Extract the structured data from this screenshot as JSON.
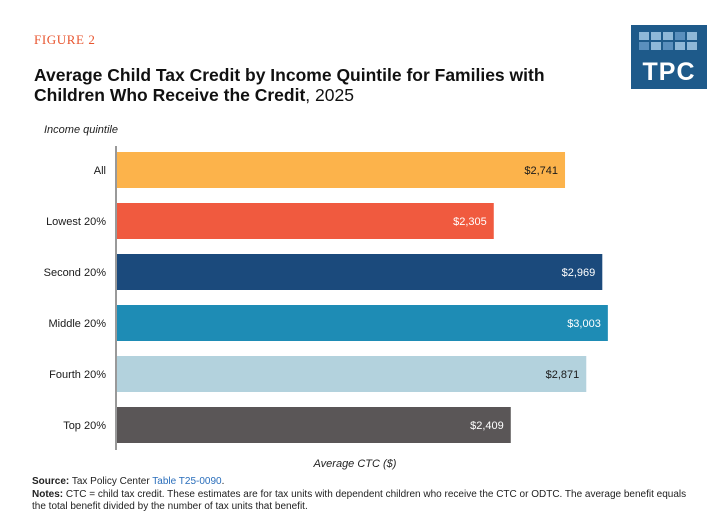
{
  "header": {
    "figure_label": "FIGURE 2",
    "title_bold": "Average Child Tax Credit by Income Quintile for Families with Children Who Receive the Credit",
    "title_suffix": ", 2025"
  },
  "logo": {
    "text": "TPC",
    "color": "#1e5a8a"
  },
  "chart_data": {
    "type": "bar",
    "orientation": "horizontal",
    "title": "Average Child Tax Credit by Income Quintile for Families with Children Who Receive the Credit, 2025",
    "ylabel": "Income quintile",
    "xlabel": "Average CTC ($)",
    "categories": [
      "All",
      "Lowest 20%",
      "Second 20%",
      "Middle 20%",
      "Fourth 20%",
      "Top 20%"
    ],
    "values": [
      2741,
      2305,
      2969,
      3003,
      2871,
      2409
    ],
    "value_labels": [
      "$2,741",
      "$2,305",
      "$2,969",
      "$3,003",
      "$2,871",
      "$2,409"
    ],
    "colors": [
      "#fcb34b",
      "#f05a3f",
      "#1b4a7c",
      "#1e8cb5",
      "#b3d2dd",
      "#5a5657"
    ],
    "label_colors": [
      "#1a1a1a",
      "#ffffff",
      "#ffffff",
      "#ffffff",
      "#1a1a1a",
      "#ffffff"
    ],
    "xlim": [
      0,
      3010
    ],
    "grid": false
  },
  "footer": {
    "source_label": "Source:",
    "source_text": "Tax Policy Center",
    "source_link": "Table T25-0090",
    "source_end": ".",
    "notes_label": "Notes:",
    "notes_text": "CTC = child tax credit. These estimates are for tax units with dependent children who receive the CTC or ODTC. The average benefit equals the total benefit divided by the number of tax units that benefit."
  }
}
